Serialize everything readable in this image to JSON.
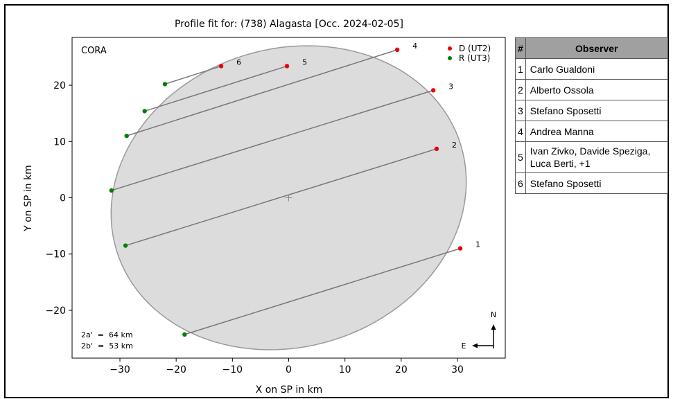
{
  "chart_data": {
    "type": "scatter",
    "title": "Profile fit for: (738) Alagasta [Occ. 2024-02-05]",
    "xlabel": "X on SP in km",
    "ylabel": "Y on SP in km",
    "xlim": [
      -38.5,
      38.5
    ],
    "ylim": [
      -28.5,
      28.5
    ],
    "xticks": [
      -30,
      -20,
      -10,
      0,
      10,
      20,
      30
    ],
    "yticks": [
      -20,
      -10,
      0,
      10,
      20
    ],
    "xtick_labels": [
      "−30",
      "−20",
      "−10",
      "0",
      "10",
      "20",
      "30"
    ],
    "ytick_labels": [
      "−20",
      "−10",
      "0",
      "10",
      "20"
    ],
    "corner_label": "CORA",
    "legend": {
      "position": "top-right",
      "entries": [
        {
          "label": "D (UT2)",
          "color": "#e8000b"
        },
        {
          "label": "R (UT3)",
          "color": "#008000"
        }
      ]
    },
    "ellipse": {
      "center": [
        0,
        0
      ],
      "a": 32,
      "b": 26.5,
      "angle_deg": 17,
      "fill": "#dcdcdc",
      "stroke": "#999999"
    },
    "center_marker": [
      0,
      0
    ],
    "chords": [
      {
        "id": "1",
        "D": [
          30.5,
          -9.0
        ],
        "R": [
          -18.5,
          -24.3
        ]
      },
      {
        "id": "2",
        "D": [
          26.3,
          8.7
        ],
        "R": [
          -29.0,
          -8.5
        ]
      },
      {
        "id": "3",
        "D": [
          25.7,
          19.1
        ],
        "R": [
          -31.5,
          1.3
        ]
      },
      {
        "id": "4",
        "D": [
          19.3,
          26.3
        ],
        "R": [
          -28.8,
          11.0
        ]
      },
      {
        "id": "5",
        "D": [
          -0.3,
          23.4
        ],
        "R": [
          -25.6,
          15.4
        ]
      },
      {
        "id": "6",
        "D": [
          -12.0,
          23.4
        ],
        "R": [
          -22.0,
          20.2
        ]
      }
    ],
    "axes_lines": [
      "2a'  =  64 km",
      "2b'  =  53 km"
    ],
    "compass": {
      "north": "N",
      "east": "E"
    }
  },
  "table": {
    "headers": [
      "#",
      "Observer"
    ],
    "rows": [
      {
        "num": "1",
        "name": "Carlo Gualdoni"
      },
      {
        "num": "2",
        "name": "Alberto Ossola"
      },
      {
        "num": "3",
        "name": "Stefano Sposetti"
      },
      {
        "num": "4",
        "name": "Andrea Manna"
      },
      {
        "num": "5",
        "name": "Ivan Zivko, Davide Speziga, Luca Berti, +1"
      },
      {
        "num": "6",
        "name": "Stefano Sposetti"
      }
    ]
  }
}
